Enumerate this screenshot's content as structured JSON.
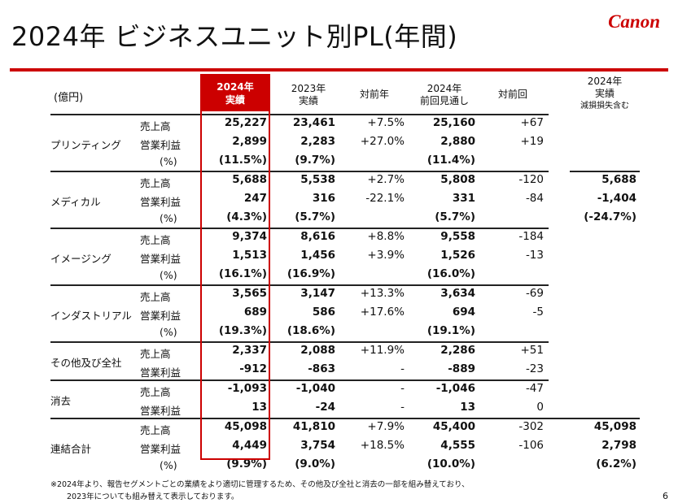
{
  "title": "2024年 ビジネスユニット別PL(年間)",
  "brand": "Canon",
  "unit": "(億円)",
  "headers": {
    "actual2024": [
      "2024年",
      "実績"
    ],
    "actual2023": [
      "2023年",
      "実績"
    ],
    "yoy": "対前年",
    "forecast2024": [
      "2024年",
      "前回見通し"
    ],
    "vsForecast": "対前回",
    "impairment": [
      "2024年",
      "実績",
      "減損損失含む"
    ]
  },
  "segments": [
    {
      "name": "プリンティング",
      "rows": [
        {
          "label": "売上高",
          "a24": "25,227",
          "a23": "23,461",
          "yoy": "+7.5%",
          "fc": "25,160",
          "vs": "+67",
          "imp": ""
        },
        {
          "label": "営業利益",
          "a24": "2,899",
          "a23": "2,283",
          "yoy": "+27.0%",
          "fc": "2,880",
          "vs": "+19",
          "imp": ""
        },
        {
          "label": "(%)",
          "a24": "(11.5%)",
          "a23": "(9.7%)",
          "yoy": "",
          "fc": "(11.4%)",
          "vs": "",
          "imp": ""
        }
      ]
    },
    {
      "name": "メディカル",
      "rows": [
        {
          "label": "売上高",
          "a24": "5,688",
          "a23": "5,538",
          "yoy": "+2.7%",
          "fc": "5,808",
          "vs": "-120",
          "imp": "5,688"
        },
        {
          "label": "営業利益",
          "a24": "247",
          "a23": "316",
          "yoy": "-22.1%",
          "fc": "331",
          "vs": "-84",
          "imp": "-1,404"
        },
        {
          "label": "(%)",
          "a24": "(4.3%)",
          "a23": "(5.7%)",
          "yoy": "",
          "fc": "(5.7%)",
          "vs": "",
          "imp": "(-24.7%)"
        }
      ]
    },
    {
      "name": "イメージング",
      "rows": [
        {
          "label": "売上高",
          "a24": "9,374",
          "a23": "8,616",
          "yoy": "+8.8%",
          "fc": "9,558",
          "vs": "-184",
          "imp": ""
        },
        {
          "label": "営業利益",
          "a24": "1,513",
          "a23": "1,456",
          "yoy": "+3.9%",
          "fc": "1,526",
          "vs": "-13",
          "imp": ""
        },
        {
          "label": "(%)",
          "a24": "(16.1%)",
          "a23": "(16.9%)",
          "yoy": "",
          "fc": "(16.0%)",
          "vs": "",
          "imp": ""
        }
      ]
    },
    {
      "name": "インダストリアル",
      "rows": [
        {
          "label": "売上高",
          "a24": "3,565",
          "a23": "3,147",
          "yoy": "+13.3%",
          "fc": "3,634",
          "vs": "-69",
          "imp": ""
        },
        {
          "label": "営業利益",
          "a24": "689",
          "a23": "586",
          "yoy": "+17.6%",
          "fc": "694",
          "vs": "-5",
          "imp": ""
        },
        {
          "label": "(%)",
          "a24": "(19.3%)",
          "a23": "(18.6%)",
          "yoy": "",
          "fc": "(19.1%)",
          "vs": "",
          "imp": ""
        }
      ]
    },
    {
      "name": "その他及び全社",
      "rows": [
        {
          "label": "売上高",
          "a24": "2,337",
          "a23": "2,088",
          "yoy": "+11.9%",
          "fc": "2,286",
          "vs": "+51",
          "imp": ""
        },
        {
          "label": "営業利益",
          "a24": "-912",
          "a23": "-863",
          "yoy": "-",
          "fc": "-889",
          "vs": "-23",
          "imp": ""
        }
      ]
    },
    {
      "name": "消去",
      "rows": [
        {
          "label": "売上高",
          "a24": "-1,093",
          "a23": "-1,040",
          "yoy": "-",
          "fc": "-1,046",
          "vs": "-47",
          "imp": ""
        },
        {
          "label": "営業利益",
          "a24": "13",
          "a23": "-24",
          "yoy": "-",
          "fc": "13",
          "vs": "0",
          "imp": ""
        }
      ]
    },
    {
      "name": "連結合計",
      "rows": [
        {
          "label": "売上高",
          "a24": "45,098",
          "a23": "41,810",
          "yoy": "+7.9%",
          "fc": "45,400",
          "vs": "-302",
          "imp": "45,098"
        },
        {
          "label": "営業利益",
          "a24": "4,449",
          "a23": "3,754",
          "yoy": "+18.5%",
          "fc": "4,555",
          "vs": "-106",
          "imp": "2,798"
        },
        {
          "label": "(%)",
          "a24": "(9.9%)",
          "a23": "(9.0%)",
          "yoy": "",
          "fc": "(10.0%)",
          "vs": "",
          "imp": "(6.2%)"
        }
      ]
    }
  ],
  "footnote": [
    "※2024年より、報告セグメントごとの業績をより適切に管理するため、その他及び全社と消去の一部を組み替えており、",
    "2023年についても組み替えて表示しております。"
  ],
  "page_number": "6"
}
